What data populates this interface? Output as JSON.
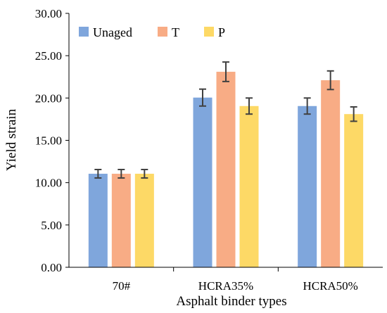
{
  "chart_data": {
    "type": "bar",
    "categories": [
      "70#",
      "HCRA35%",
      "HCRA50%"
    ],
    "series": [
      {
        "name": "Unaged",
        "color": "#7fa6dc",
        "values": [
          11.05,
          20.05,
          19.05
        ],
        "errors": [
          0.5,
          1.0,
          0.95
        ]
      },
      {
        "name": "T",
        "color": "#f8ac85",
        "values": [
          11.05,
          23.1,
          22.1
        ],
        "errors": [
          0.5,
          1.15,
          1.1
        ]
      },
      {
        "name": "P",
        "color": "#fdd966",
        "values": [
          11.05,
          19.05,
          18.1
        ],
        "errors": [
          0.5,
          0.95,
          0.85
        ]
      }
    ],
    "xlabel": "Asphalt binder types",
    "ylabel": "Yield strain",
    "ylim": [
      0,
      30
    ],
    "yticks": [
      "0.00",
      "5.00",
      "10.00",
      "15.00",
      "20.00",
      "25.00",
      "30.00"
    ],
    "grid": false,
    "legend_position": "top-left",
    "error_bar_color": "#404040"
  }
}
